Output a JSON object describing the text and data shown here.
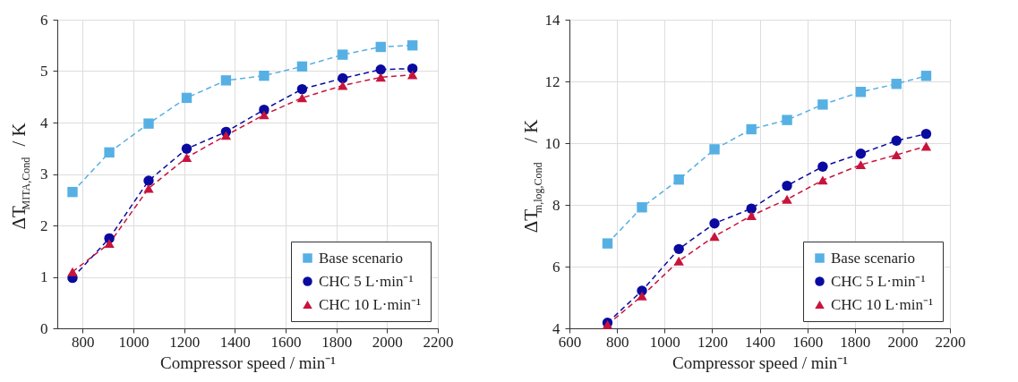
{
  "chart_data": [
    {
      "type": "line",
      "xlabel": "Compressor speed / min⁻¹",
      "ylabel": "ΔT$_{MITA,Cond}$ / K",
      "x": [
        760,
        905,
        1060,
        1210,
        1365,
        1515,
        1665,
        1825,
        1975,
        2100
      ],
      "xlim": [
        700,
        2200
      ],
      "xticks": [
        800,
        1000,
        1200,
        1400,
        1600,
        1800,
        2000,
        2200
      ],
      "ylim": [
        0,
        6
      ],
      "yticks": [
        0,
        1,
        2,
        3,
        4,
        5,
        6
      ],
      "grid": true,
      "legend": "bottom right",
      "line_style": "dashed",
      "series": [
        {
          "name": "Base scenario",
          "color": "#56b0e4",
          "marker": "square",
          "values": [
            2.65,
            3.42,
            3.98,
            4.48,
            4.82,
            4.91,
            5.09,
            5.32,
            5.47,
            5.5
          ]
        },
        {
          "name": "CHC 5 L·min⁻¹",
          "color": "#0a0aa0",
          "marker": "circle",
          "values": [
            0.98,
            1.75,
            2.87,
            3.49,
            3.82,
            4.25,
            4.65,
            4.86,
            5.03,
            5.05
          ]
        },
        {
          "name": "CHC 10 L·min⁻¹",
          "color": "#c8143c",
          "marker": "triangle",
          "values": [
            1.1,
            1.65,
            2.72,
            3.32,
            3.75,
            4.15,
            4.48,
            4.72,
            4.88,
            4.93
          ]
        }
      ]
    },
    {
      "type": "line",
      "xlabel": "Compressor speed / min⁻¹",
      "ylabel": "ΔT$_{m,log,Cond}$ / K",
      "x": [
        760,
        905,
        1060,
        1210,
        1365,
        1515,
        1665,
        1825,
        1975,
        2100
      ],
      "xlim": [
        600,
        2200
      ],
      "xticks": [
        600,
        800,
        1000,
        1200,
        1400,
        1600,
        1800,
        2000,
        2200
      ],
      "ylim": [
        4,
        14
      ],
      "yticks": [
        4,
        6,
        8,
        10,
        12,
        14
      ],
      "grid": true,
      "legend": "bottom right",
      "line_style": "dashed",
      "series": [
        {
          "name": "Base scenario",
          "color": "#56b0e4",
          "marker": "square",
          "values": [
            6.75,
            7.92,
            8.82,
            9.8,
            10.45,
            10.75,
            11.25,
            11.66,
            11.92,
            12.18
          ]
        },
        {
          "name": "CHC 5 L·min⁻¹",
          "color": "#0a0aa0",
          "marker": "circle",
          "values": [
            4.18,
            5.22,
            6.57,
            7.4,
            7.88,
            8.62,
            9.24,
            9.66,
            10.08,
            10.3
          ]
        },
        {
          "name": "CHC 10 L·min⁻¹",
          "color": "#c8143c",
          "marker": "triangle",
          "values": [
            4.12,
            5.05,
            6.18,
            6.98,
            7.65,
            8.18,
            8.8,
            9.3,
            9.62,
            9.9
          ]
        }
      ]
    }
  ]
}
